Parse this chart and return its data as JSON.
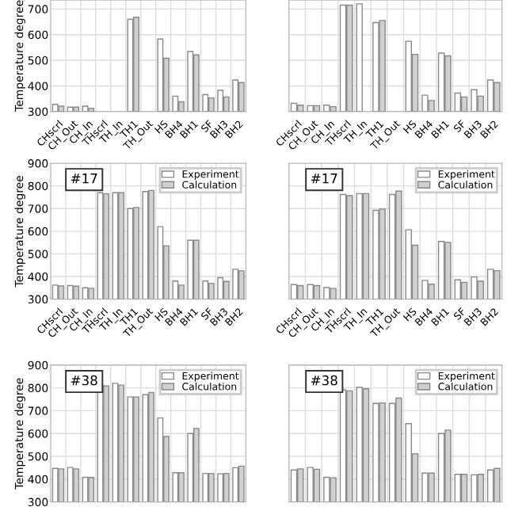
{
  "chart_data": [
    {
      "type": "bar",
      "categories": [
        "CHscrl",
        "CH_Out",
        "CH_In",
        "THscrl",
        "TH_In",
        "TH1",
        "TH_Out",
        "HS",
        "BH4",
        "BH1",
        "SF",
        "BH3",
        "BH2"
      ],
      "ylabel": "Temperature degree",
      "ylim": [
        300,
        735
      ],
      "yticks": [
        300,
        400,
        500,
        600,
        700
      ],
      "grid": true,
      "legend": false,
      "tick_labels": "xy",
      "series": [
        {
          "color": "#ffffff",
          "values": [
            328,
            317,
            321,
            null,
            null,
            660,
            null,
            583,
            360,
            534,
            366,
            383,
            423
          ]
        },
        {
          "color": "#d0d0d0",
          "values": [
            321,
            317,
            313,
            null,
            null,
            668,
            null,
            508,
            338,
            521,
            353,
            357,
            413
          ]
        }
      ]
    },
    {
      "type": "bar",
      "categories": [
        "CHscrl",
        "CH_Out",
        "CH_In",
        "THscrl",
        "TH_In",
        "TH1",
        "TH_Out",
        "HS",
        "BH4",
        "BH1",
        "SF",
        "BH3",
        "BH2"
      ],
      "ylim": [
        300,
        735
      ],
      "yticks": [
        300,
        400,
        500,
        600,
        700
      ],
      "grid": true,
      "legend": false,
      "tick_labels": "x",
      "series": [
        {
          "color": "#ffffff",
          "values": [
            332,
            323,
            325,
            715,
            720,
            647,
            null,
            574,
            364,
            528,
            372,
            385,
            423
          ]
        },
        {
          "color": "#d0d0d0",
          "values": [
            325,
            323,
            319,
            715,
            null,
            655,
            null,
            523,
            343,
            517,
            357,
            360,
            413
          ]
        }
      ]
    },
    {
      "type": "bar",
      "categories": [
        "CHscrl",
        "CH_Out",
        "CH_In",
        "THscrl",
        "TH_In",
        "TH1",
        "TH_Out",
        "HS",
        "BH4",
        "BH1",
        "SF",
        "BH3",
        "BH2"
      ],
      "ylabel": "Temperature degree",
      "ylim": [
        300,
        900
      ],
      "yticks": [
        300,
        400,
        500,
        600,
        700,
        800,
        900
      ],
      "grid": true,
      "legend": "top right",
      "tick_labels": "xy",
      "annotations": [
        "#17"
      ],
      "series": [
        {
          "name": "Experiment",
          "color": "#ffffff",
          "values": [
            362,
            360,
            350,
            770,
            770,
            700,
            775,
            620,
            380,
            560,
            380,
            395,
            432
          ]
        },
        {
          "name": "Calculation",
          "color": "#d0d0d0",
          "values": [
            358,
            357,
            348,
            765,
            770,
            705,
            780,
            535,
            362,
            560,
            370,
            378,
            425
          ]
        }
      ]
    },
    {
      "type": "bar",
      "categories": [
        "CHscrl",
        "CH_Out",
        "CH_In",
        "THscrl",
        "TH_In",
        "TH1",
        "TH_Out",
        "HS",
        "BH4",
        "BH1",
        "SF",
        "BH3",
        "BH2"
      ],
      "ylim": [
        300,
        900
      ],
      "yticks": [
        300,
        400,
        500,
        600,
        700,
        800,
        900
      ],
      "grid": true,
      "legend": "top right",
      "tick_labels": "x",
      "annotations": [
        "#17"
      ],
      "series": [
        {
          "name": "Experiment",
          "color": "#ffffff",
          "values": [
            364,
            364,
            351,
            762,
            766,
            692,
            762,
            606,
            383,
            555,
            385,
            398,
            432
          ]
        },
        {
          "name": "Calculation",
          "color": "#d0d0d0",
          "values": [
            360,
            360,
            347,
            757,
            766,
            698,
            777,
            538,
            366,
            551,
            374,
            379,
            426
          ]
        }
      ]
    },
    {
      "type": "bar",
      "categories": [
        null,
        null,
        null,
        null,
        null,
        null,
        null,
        null,
        null,
        null,
        null,
        null,
        null
      ],
      "ylabel": "Temperature degree",
      "ylim": [
        300,
        900
      ],
      "yticks": [
        300,
        400,
        500,
        600,
        700,
        800,
        900
      ],
      "grid": true,
      "legend": "top right",
      "tick_labels": "y",
      "annotations": [
        "#38"
      ],
      "series": [
        {
          "name": "Experiment",
          "color": "#ffffff",
          "values": [
            447,
            451,
            408,
            815,
            820,
            760,
            770,
            668,
            428,
            600,
            425,
            423,
            450
          ]
        },
        {
          "name": "Calculation",
          "color": "#d0d0d0",
          "values": [
            445,
            445,
            407,
            808,
            812,
            760,
            780,
            587,
            428,
            622,
            425,
            425,
            457
          ]
        }
      ]
    },
    {
      "type": "bar",
      "categories": [
        null,
        null,
        null,
        null,
        null,
        null,
        null,
        null,
        null,
        null,
        null,
        null,
        null
      ],
      "ylim": [
        300,
        900
      ],
      "yticks": [
        300,
        400,
        500,
        600,
        700,
        800,
        900
      ],
      "grid": true,
      "legend": "top right",
      "tick_labels": false,
      "annotations": [
        "#38"
      ],
      "series": [
        {
          "name": "Experiment",
          "color": "#ffffff",
          "values": [
            440,
            451,
            408,
            791,
            802,
            732,
            732,
            643,
            426,
            600,
            421,
            419,
            440
          ]
        },
        {
          "name": "Calculation",
          "color": "#d0d0d0",
          "values": [
            445,
            443,
            406,
            787,
            796,
            734,
            755,
            511,
            426,
            615,
            421,
            421,
            447
          ]
        }
      ]
    }
  ]
}
